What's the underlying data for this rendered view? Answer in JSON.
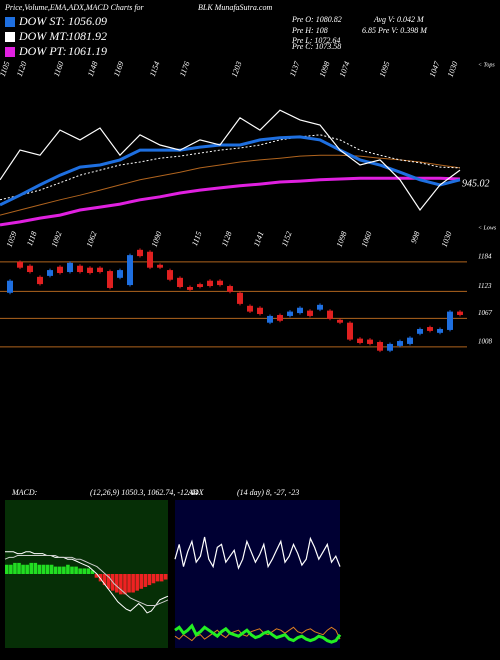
{
  "header": {
    "title": "Price,Volume,EMA,ADX,MACD Charts for",
    "source": "BLK MunafaSutra.com"
  },
  "info": [
    "Pre O: 1080.82",
    "Pre H: 108",
    "Pre L: 1072.64",
    "Pre C: 1073.58"
  ],
  "info_right": [
    "Avg V: 0.042 M",
    "6.85 Pre V: 0.398 M"
  ],
  "chart_data": [
    {
      "type": "line",
      "ylim": [
        850,
        1250
      ],
      "top_labels": [
        1105,
        1120,
        1160,
        1148,
        1169,
        1154,
        1176,
        1203,
        1137,
        1098,
        1074,
        1095,
        1047,
        1030
      ],
      "bottom_labels": [
        1059,
        1118,
        1092,
        1062,
        1090,
        1115,
        1128,
        1141,
        1152,
        1098,
        1060,
        998,
        1030
      ],
      "tops_label": "< Tops",
      "lows_label": "< Lows",
      "last_price": 945.02,
      "series": [
        {
          "color": "#b0641e",
          "values": [
            885,
            897,
            909,
            921,
            932,
            944,
            956,
            968,
            977,
            986,
            996,
            1003,
            1010,
            1015,
            1019,
            1024,
            1026,
            1026,
            1024,
            1019,
            1015,
            1010,
            1003,
            996
          ]
        },
        {
          "name": "DOW PT:",
          "value": 1061.19,
          "color": "#e020e0",
          "values": [
            862,
            869,
            878,
            885,
            897,
            904,
            911,
            921,
            928,
            937,
            944,
            949,
            954,
            958,
            963,
            965,
            968,
            970,
            972,
            972,
            972,
            972,
            972,
            970
          ]
        },
        {
          "name": "DOW MT:",
          "value": 1081.92,
          "color": "#ffffff",
          "values": [
            921,
            932,
            944,
            961,
            979,
            991,
            1003,
            1010,
            1019,
            1024,
            1031,
            1038,
            1043,
            1050,
            1062,
            1069,
            1074,
            1062,
            1038,
            1026,
            1015,
            1008,
            998,
            996
          ]
        },
        {
          "name": "DOW ST:",
          "value": 1056.09,
          "color": "#1e6fe0",
          "values": [
            909,
            932,
            956,
            979,
            998,
            1003,
            1015,
            1038,
            1038,
            1038,
            1045,
            1050,
            1050,
            1062,
            1067,
            1069,
            1062,
            1038,
            1015,
            1003,
            986,
            968,
            956,
            968
          ]
        },
        {
          "color": "#ffffff",
          "values": [
            968,
            1038,
            1026,
            1085,
            1062,
            1090,
            1026,
            1074,
            1050,
            1038,
            1062,
            1050,
            1114,
            1085,
            1132,
            1109,
            1097,
            1038,
            1003,
            1015,
            968,
            897,
            956,
            991
          ]
        }
      ]
    },
    {
      "type": "candlestick",
      "ylim": [
        960,
        1219
      ],
      "yticks": [
        1184,
        1123,
        1067,
        1008
      ],
      "up_color": "#1e6fe0",
      "down_color": "#e02020",
      "grid_color": "#b0641e",
      "open": [
        1120,
        1184,
        1176,
        1153,
        1155,
        1174,
        1163,
        1176,
        1172,
        1172,
        1165,
        1151,
        1136,
        1209,
        1205,
        1178,
        1167,
        1151,
        1132,
        1138,
        1145,
        1145,
        1134,
        1120,
        1093,
        1089,
        1058,
        1074,
        1072,
        1078,
        1083,
        1085,
        1083,
        1064,
        1058,
        1025,
        1023,
        1018,
        1000,
        1010,
        1014,
        1035,
        1049,
        1037,
        1043,
        1081
      ],
      "close": [
        1145,
        1172,
        1163,
        1138,
        1167,
        1161,
        1182,
        1163,
        1161,
        1163,
        1130,
        1167,
        1198,
        1196,
        1172,
        1172,
        1147,
        1132,
        1126,
        1132,
        1134,
        1136,
        1122,
        1097,
        1081,
        1076,
        1072,
        1062,
        1081,
        1089,
        1072,
        1095,
        1066,
        1058,
        1023,
        1016,
        1014,
        1000,
        1014,
        1020,
        1027,
        1045,
        1041,
        1045,
        1081,
        1074
      ],
      "high": [
        1148,
        1187,
        1179,
        1156,
        1170,
        1177,
        1185,
        1179,
        1175,
        1175,
        1168,
        1170,
        1201,
        1212,
        1208,
        1181,
        1170,
        1154,
        1135,
        1141,
        1148,
        1148,
        1137,
        1123,
        1096,
        1092,
        1075,
        1077,
        1084,
        1092,
        1086,
        1098,
        1086,
        1067,
        1061,
        1028,
        1026,
        1021,
        1017,
        1023,
        1030,
        1048,
        1052,
        1048,
        1084,
        1084
      ],
      "low": [
        1117,
        1169,
        1160,
        1135,
        1152,
        1158,
        1160,
        1160,
        1158,
        1160,
        1127,
        1148,
        1133,
        1193,
        1169,
        1169,
        1144,
        1129,
        1123,
        1129,
        1131,
        1133,
        1119,
        1094,
        1078,
        1073,
        1055,
        1059,
        1069,
        1075,
        1069,
        1082,
        1063,
        1055,
        1020,
        1013,
        1011,
        997,
        997,
        1007,
        1011,
        1032,
        1038,
        1034,
        1040,
        1071
      ]
    },
    {
      "type": "macd",
      "title": "MACD:",
      "subtitle": "(12,26,9) 1050.3, 1062.74, -12.44",
      "ylim": [
        -40,
        40
      ],
      "pos_color": "#22dd22",
      "neg_color": "#ee2222",
      "histogram": [
        5,
        5,
        6,
        6,
        5,
        5,
        6,
        6,
        5,
        5,
        5,
        5,
        4,
        4,
        4,
        5,
        4,
        4,
        3,
        3,
        3,
        2,
        -2,
        -4,
        -6,
        -8,
        -9,
        -10,
        -11,
        -11,
        -10,
        -10,
        -9,
        -8,
        -7,
        -6,
        -5,
        -4,
        -4,
        -3
      ],
      "series": [
        {
          "color": "#ffffff",
          "values": [
            12,
            12,
            12,
            11,
            11,
            12,
            12,
            11,
            11,
            11,
            10,
            10,
            9,
            9,
            9,
            8,
            8,
            7,
            6,
            5,
            4,
            2,
            0,
            -3,
            -6,
            -9,
            -12,
            -15,
            -17,
            -19,
            -20,
            -18,
            -16,
            -18,
            -21,
            -20,
            -17,
            -14,
            -13,
            -12
          ]
        },
        {
          "color": "#cccccc",
          "values": [
            8,
            9,
            9,
            10,
            10,
            10,
            10,
            10,
            10,
            10,
            10,
            10,
            10,
            9,
            9,
            9,
            9,
            8,
            8,
            7,
            6,
            5,
            4,
            2,
            0,
            -2,
            -5,
            -7,
            -9,
            -11,
            -13,
            -14,
            -15,
            -16,
            -17,
            -17,
            -17,
            -16,
            -15,
            -14
          ]
        }
      ]
    },
    {
      "type": "line",
      "title": "ADX",
      "subtitle": "(14 day) 8, -27, -23",
      "ylim": [
        0,
        100
      ],
      "series": [
        {
          "color": "#ffffff",
          "values": [
            60,
            70,
            55,
            65,
            72,
            58,
            62,
            75,
            60,
            55,
            68,
            70,
            58,
            62,
            66,
            54,
            60,
            72,
            65,
            58,
            63,
            70,
            55,
            60,
            66,
            72,
            58,
            62,
            70,
            64,
            56,
            60,
            74,
            68,
            60,
            65,
            70,
            58,
            62,
            55
          ]
        },
        {
          "color": "#e08020",
          "values": [
            8,
            6,
            9,
            7,
            5,
            8,
            9,
            6,
            8,
            10,
            12,
            9,
            7,
            10,
            11,
            12,
            9,
            8,
            11,
            12,
            13,
            10,
            9,
            11,
            13,
            12,
            10,
            12,
            14,
            11,
            10,
            12,
            13,
            11,
            10,
            9,
            12,
            14,
            12,
            6
          ]
        },
        {
          "color": "#22ee22",
          "values": [
            12,
            14,
            10,
            12,
            15,
            9,
            11,
            14,
            12,
            10,
            8,
            11,
            13,
            10,
            9,
            8,
            10,
            12,
            9,
            7,
            8,
            10,
            11,
            9,
            7,
            8,
            9,
            6,
            5,
            7,
            8,
            6,
            5,
            6,
            8,
            7,
            5,
            4,
            5,
            9
          ]
        }
      ]
    }
  ]
}
